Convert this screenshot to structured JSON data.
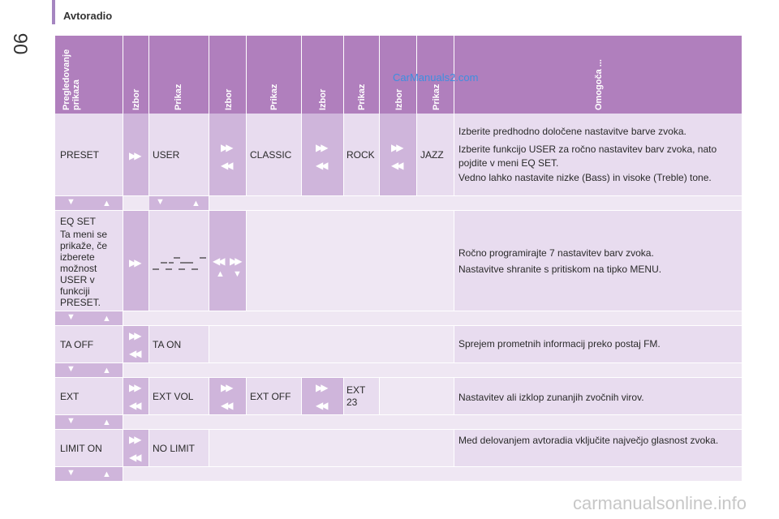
{
  "page": {
    "number": "90",
    "title": "Avtoradio"
  },
  "header": {
    "col1": "Pregledovanje prikaza",
    "col2": "Izbor",
    "col3": "Prikaz",
    "col4": "Izbor",
    "col5": "Prikaz",
    "col6": "Izbor",
    "col7": "Prikaz",
    "col8": "Izbor",
    "col9": "Prikaz",
    "col10": "Omogoča ..."
  },
  "rows": {
    "preset": {
      "label": "PRESET",
      "opt1": "USER",
      "opt2": "CLASSIC",
      "opt3": "ROCK",
      "opt4": "JAZZ",
      "desc1": "Izberite predhodno določene nastavitve barve zvoka.",
      "desc2": "Izberite funkcijo USER za ročno nastavitev barv zvoka, nato pojdite v meni EQ SET.",
      "desc3": "Vedno lahko nastavite nizke (Bass) in visoke (Treble) tone."
    },
    "eqset": {
      "label": "EQ SET",
      "note": "Ta meni se prikaže, če izberete možnost USER v funkciji PRESET.",
      "desc1": "Ročno programirajte 7 nastavitev barv zvoka.",
      "desc2": "Nastavitve shranite s pritiskom na tipko MENU."
    },
    "ta": {
      "label": "TA OFF",
      "opt1": "TA ON",
      "desc": "Sprejem prometnih informacij preko postaj FM."
    },
    "ext": {
      "label": "EXT",
      "opt1": "EXT VOL",
      "opt2": "EXT OFF",
      "opt3": "EXT 23",
      "desc": "Nastavitev ali izklop zunanjih zvočnih virov."
    },
    "limit": {
      "label": "LIMIT ON",
      "opt1": "NO LIMIT",
      "desc": "Med delovanjem avtoradia vključite največjo glasnost zvoka."
    }
  },
  "watermarks": {
    "blue": "CarManuals2.com",
    "footer": "carmanualsonline.info"
  },
  "icons": {
    "next": "double-chevron-right-icon",
    "prev": "double-chevron-left-icon",
    "down": "triangle-down-icon",
    "up": "triangle-up-icon"
  }
}
